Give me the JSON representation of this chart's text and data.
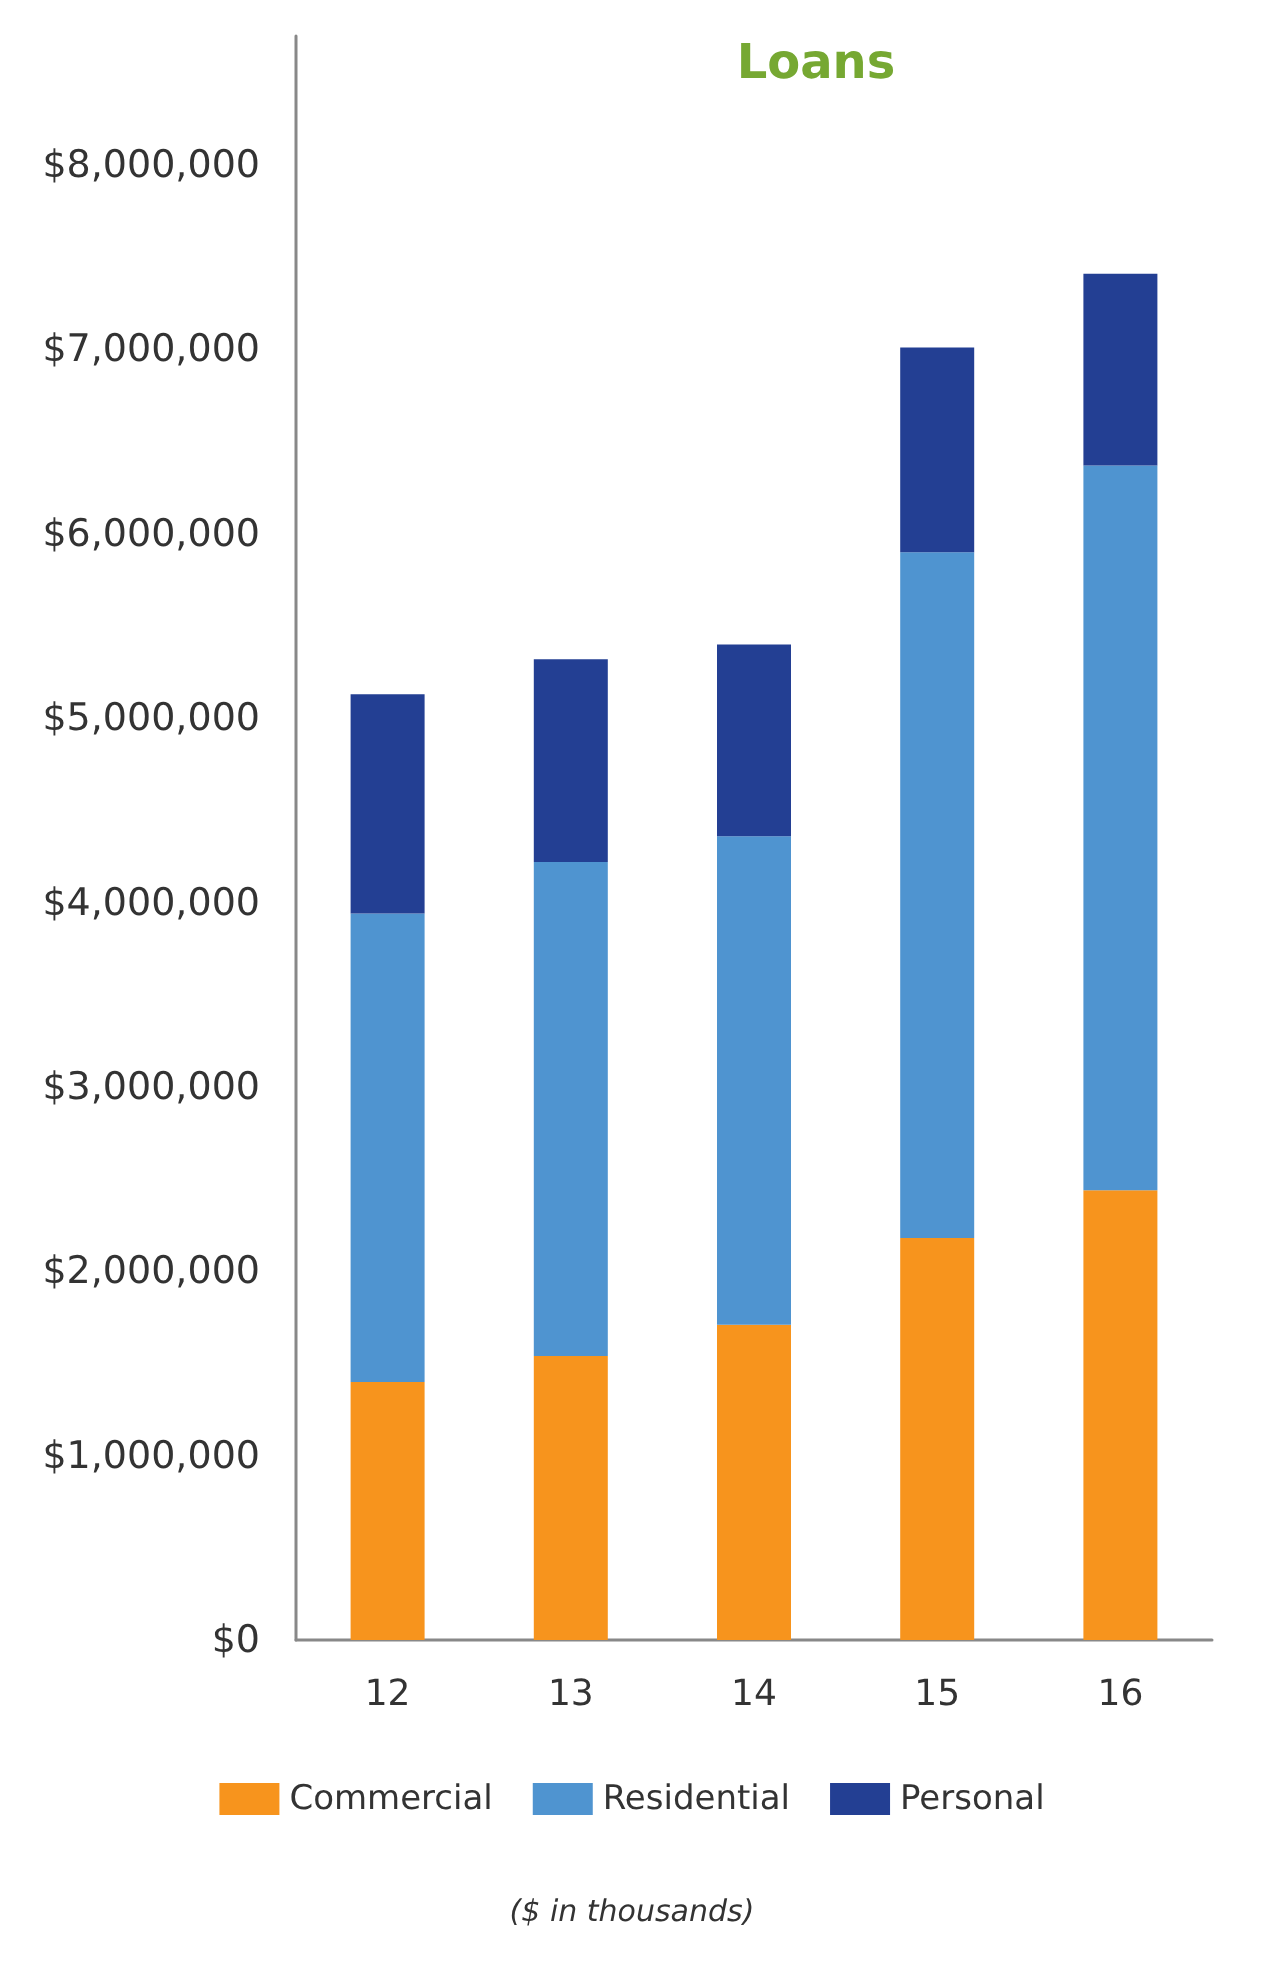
{
  "chart_data": {
    "type": "bar",
    "title": "Loans",
    "categories": [
      "12",
      "13",
      "14",
      "15",
      "16"
    ],
    "series": [
      {
        "name": "Commercial",
        "color": "#f7941d",
        "values": [
          1400000,
          1540000,
          1710000,
          2180000,
          2440000
        ]
      },
      {
        "name": "Residential",
        "color": "#4f94d0",
        "values": [
          2540000,
          2680000,
          2650000,
          3720000,
          3930000
        ]
      },
      {
        "name": "Personal",
        "color": "#233f93",
        "values": [
          1190000,
          1100000,
          1040000,
          1110000,
          1040000
        ]
      }
    ],
    "stacked": true,
    "ylim": [
      0,
      8700000
    ],
    "yticks": [
      {
        "value": 0,
        "label": "$0"
      },
      {
        "value": 1000000,
        "label": "$1,000,000"
      },
      {
        "value": 2000000,
        "label": "$2,000,000"
      },
      {
        "value": 3000000,
        "label": "$3,000,000"
      },
      {
        "value": 4000000,
        "label": "$4,000,000"
      },
      {
        "value": 5000000,
        "label": "$5,000,000"
      },
      {
        "value": 6000000,
        "label": "$6,000,000"
      },
      {
        "value": 7000000,
        "label": "$7,000,000"
      },
      {
        "value": 8000000,
        "label": "$8,000,000"
      }
    ],
    "grid": false,
    "legend": "bottom",
    "annotations": [
      "($ in thousands)"
    ]
  }
}
